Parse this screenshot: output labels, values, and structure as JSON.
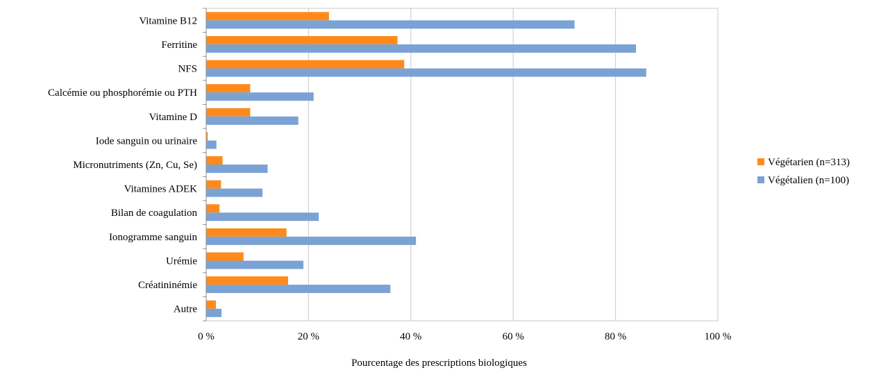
{
  "chart_data": {
    "type": "bar",
    "orientation": "horizontal",
    "title": "",
    "xlabel": "Pourcentage des prescriptions biologiques",
    "ylabel": "",
    "xlim": [
      0,
      100
    ],
    "x_ticks": [
      0,
      20,
      40,
      60,
      80,
      100
    ],
    "x_tick_labels": [
      "0 %",
      "20 %",
      "40 %",
      "60 %",
      "80 %",
      "100 %"
    ],
    "grid": "vertical gridlines",
    "legend_position": "right",
    "categories": [
      "Vitamine B12",
      "Ferritine",
      "NFS",
      "Calcémie ou phosphorémie ou PTH",
      "Vitamine D",
      "Iode sanguin ou urinaire",
      "Micronutriments (Zn, Cu, Se)",
      "Vitamines ADEK",
      "Bilan de coagulation",
      "Ionogramme sanguin",
      "Urémie",
      "Créatininémie",
      "Autre"
    ],
    "series": [
      {
        "name": "Végétarien (n=313)",
        "color": "#ff8a1c",
        "values": [
          24,
          37.4,
          38.7,
          8.6,
          8.6,
          0.3,
          3.2,
          2.9,
          2.6,
          15.7,
          7.3,
          16,
          1.9
        ]
      },
      {
        "name": "Végétalien (n=100)",
        "color": "#7aa2d4",
        "values": [
          72,
          84,
          86,
          21,
          18,
          2,
          12,
          11,
          22,
          41,
          19,
          36,
          3
        ]
      }
    ]
  }
}
